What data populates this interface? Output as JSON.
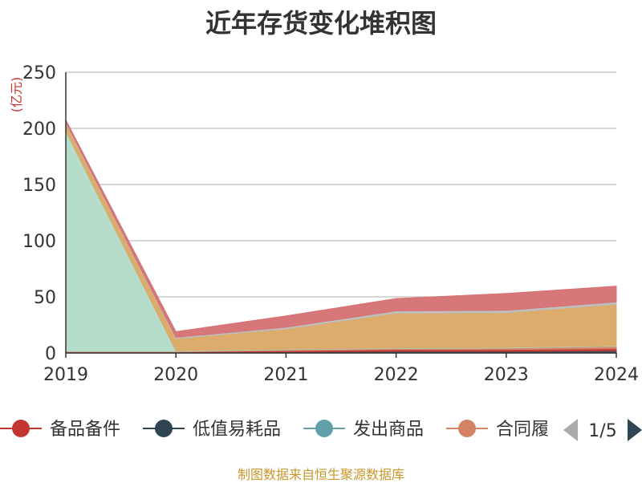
{
  "chart_data": {
    "type": "area",
    "stacked": true,
    "title": "近年存货变化堆积图",
    "ylabel": "(亿元)",
    "xlabel": "",
    "categories": [
      "2019",
      "2020",
      "2021",
      "2022",
      "2023",
      "2024"
    ],
    "ylim": [
      0,
      250
    ],
    "yticks": [
      0,
      50,
      100,
      150,
      200,
      250
    ],
    "grid": true,
    "series": [
      {
        "name": "低值易耗品",
        "color": "#2f4554",
        "values": [
          0.5,
          0.5,
          1.0,
          1.5,
          1.5,
          2.0
        ]
      },
      {
        "name": "备品备件",
        "color": "#c23531",
        "values": [
          0.5,
          0.5,
          1.0,
          1.5,
          1.5,
          2.0
        ]
      },
      {
        "name": "合同履约成本",
        "color": "#d48265",
        "values": [
          0.5,
          0.5,
          1.0,
          1.0,
          1.5,
          2.0
        ]
      },
      {
        "name": "发出商品",
        "color": "#61a0a8",
        "values": [
          0.0,
          0.0,
          0.0,
          0.0,
          0.0,
          0.0
        ]
      },
      {
        "name": "",
        "color": "#b2dbc9",
        "values": [
          196,
          0.5,
          0.5,
          0.5,
          0.5,
          0.5
        ]
      },
      {
        "name": "",
        "color": "#d9a864",
        "values": [
          7,
          11,
          18,
          31,
          31,
          37
        ]
      },
      {
        "name": "",
        "color": "#bdbdbd",
        "values": [
          1,
          1,
          1.5,
          2,
          2,
          2
        ]
      },
      {
        "name": "",
        "color": "#d57073",
        "values": [
          2,
          5,
          10,
          11,
          15,
          14
        ]
      }
    ]
  },
  "legend": {
    "items": [
      {
        "label": "备品备件",
        "color": "#c23531"
      },
      {
        "label": "低值易耗品",
        "color": "#2f4554"
      },
      {
        "label": "发出商品",
        "color": "#61a0a8"
      },
      {
        "label": "合同履",
        "color": "#d48265"
      }
    ],
    "page": "1/5"
  },
  "source": "制图数据来自恒生聚源数据库"
}
